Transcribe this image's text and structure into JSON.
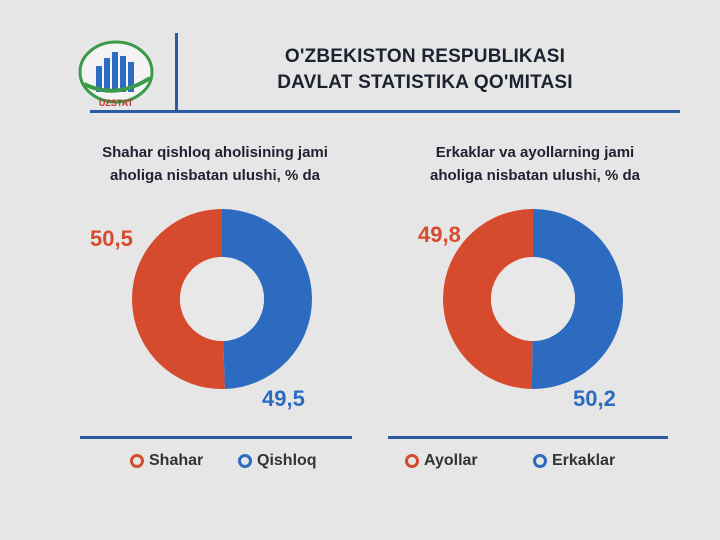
{
  "header": {
    "logo_text": "UZSTAT",
    "title_line1": "O'ZBEKISTON RESPUBLIKASI",
    "title_line2": "DAVLAT STATISTIKA QO'MITASI"
  },
  "colors": {
    "red": "#d64a2e",
    "blue": "#2c6bbf",
    "rule": "#2a5d9f"
  },
  "chart_data": [
    {
      "type": "pie",
      "title_line1": "Shahar qishloq aholisining jami",
      "title_line2": "aholiga nisbatan ulushi, % da",
      "categories": [
        "Shahar",
        "Qishloq"
      ],
      "values": [
        50.5,
        49.5
      ],
      "value_labels": [
        "50,5",
        "49,5"
      ],
      "colors": [
        "#d64a2e",
        "#2c6bbf"
      ],
      "legend": "bottom"
    },
    {
      "type": "pie",
      "title_line1": "Erkaklar va ayollarning jami",
      "title_line2": "aholiga nisbatan ulushi, % da",
      "categories": [
        "Ayollar",
        "Erkaklar"
      ],
      "values": [
        49.8,
        50.2
      ],
      "value_labels": [
        "49,8",
        "50,2"
      ],
      "colors": [
        "#d64a2e",
        "#2c6bbf"
      ],
      "legend": "bottom"
    }
  ]
}
